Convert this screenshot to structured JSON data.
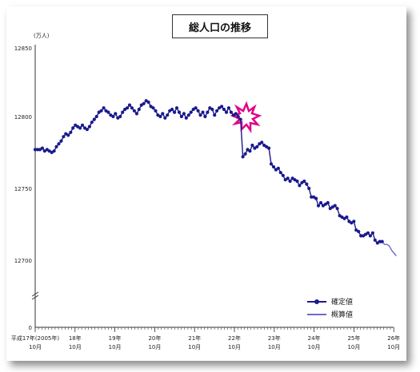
{
  "chart_data": {
    "type": "line",
    "title": "総人口の推移",
    "unit_label": "(万人)",
    "ylim": [
      0,
      12850
    ],
    "y_ticks": [
      "12850",
      "12800",
      "12750",
      "12700",
      "0"
    ],
    "x_ticks": [
      {
        "line1": "平成17年(2005年)",
        "line2": "10月"
      },
      {
        "line1": "18年",
        "line2": "10月"
      },
      {
        "line1": "19年",
        "line2": "10月"
      },
      {
        "line1": "20年",
        "line2": "10月"
      },
      {
        "line1": "21年",
        "line2": "10月"
      },
      {
        "line1": "22年",
        "line2": "10月"
      },
      {
        "line1": "23年",
        "line2": "10月"
      },
      {
        "line1": "24年",
        "line2": "10月"
      },
      {
        "line1": "25年",
        "line2": "10月"
      },
      {
        "line1": "26年",
        "line2": "10月"
      }
    ],
    "legend": [
      "確定値",
      "概算値"
    ],
    "colors": {
      "confirmed": "#1a1a8c",
      "estimate": "#6a6ad0",
      "burst": "#e0008a"
    },
    "series": [
      {
        "name": "確定値",
        "values": [
          12777,
          12777,
          12777,
          12778,
          12776,
          12777,
          12776,
          12775,
          12776,
          12779,
          12781,
          12783,
          12786,
          12788,
          12787,
          12789,
          12792,
          12794,
          12793,
          12792,
          12794,
          12792,
          12791,
          12793,
          12796,
          12798,
          12800,
          12803,
          12804,
          12806,
          12804,
          12803,
          12801,
          12800,
          12802,
          12799,
          12800,
          12803,
          12805,
          12806,
          12808,
          12806,
          12804,
          12802,
          12805,
          12808,
          12809,
          12811,
          12810,
          12807,
          12806,
          12804,
          12801,
          12800,
          12802,
          12799,
          12801,
          12804,
          12805,
          12803,
          12806,
          12803,
          12800,
          12802,
          12799,
          12801,
          12803,
          12805,
          12806,
          12804,
          12801,
          12803,
          12800,
          12803,
          12806,
          12805,
          12801,
          12804,
          12806,
          12807,
          12805,
          12803,
          12806,
          12803,
          12801,
          12802,
          12800,
          12798,
          12772,
          12774,
          12777,
          12776,
          12780,
          12778,
          12779,
          12781,
          12782,
          12780,
          12779,
          12778,
          12767,
          12765,
          12763,
          12764,
          12761,
          12759,
          12756,
          12757,
          12755,
          12757,
          12756,
          12755,
          12752,
          12754,
          12755,
          12753,
          12750,
          12744,
          12744,
          12743,
          12738,
          12740,
          12738,
          12739,
          12740,
          12736,
          12737,
          12738,
          12736,
          12731,
          12730,
          12729,
          12730,
          12727,
          12726,
          12727,
          12721,
          12720,
          12717,
          12717,
          12718,
          12719,
          12717,
          12719,
          12714,
          12712,
          12713,
          12713
        ]
      },
      {
        "name": "概算値",
        "values": [
          12713,
          12711,
          12711,
          12710,
          12707,
          12705,
          12703
        ]
      }
    ]
  }
}
